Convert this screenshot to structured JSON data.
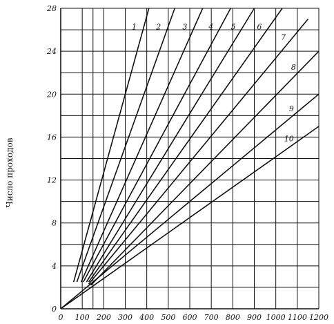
{
  "chart_data": {
    "type": "line",
    "ylabel": "Число проходов",
    "xlabel": "",
    "xlim": [
      0,
      1200
    ],
    "ylim": [
      0,
      28
    ],
    "x_ticks": [
      "0",
      "100",
      "200",
      "300",
      "400",
      "500",
      "600",
      "700",
      "800",
      "900",
      "1000",
      "1100",
      "1200"
    ],
    "y_ticks": [
      "0",
      "4",
      "8",
      "12",
      "16",
      "20",
      "24",
      "28"
    ],
    "x_grid": [
      0,
      100,
      150,
      200,
      300,
      400,
      500,
      600,
      700,
      800,
      900,
      1000,
      1100,
      1200
    ],
    "y_grid": [
      0,
      2,
      4,
      6,
      8,
      10,
      12,
      14,
      16,
      18,
      20,
      22,
      24,
      26,
      28
    ],
    "grid": true,
    "series": [
      {
        "name": "1",
        "x": [
          60,
          410
        ],
        "y": [
          2.5,
          28
        ]
      },
      {
        "name": "2",
        "x": [
          75,
          530
        ],
        "y": [
          2.5,
          28
        ]
      },
      {
        "name": "3",
        "x": [
          95,
          660
        ],
        "y": [
          2.5,
          28
        ]
      },
      {
        "name": "4",
        "x": [
          105,
          790
        ],
        "y": [
          2.5,
          28
        ]
      },
      {
        "name": "5",
        "x": [
          120,
          900
        ],
        "y": [
          2.5,
          28
        ]
      },
      {
        "name": "6",
        "x": [
          130,
          1030
        ],
        "y": [
          2.5,
          28
        ]
      },
      {
        "name": "7",
        "x": [
          130,
          1150
        ],
        "y": [
          2.3,
          27
        ]
      },
      {
        "name": "8",
        "x": [
          140,
          1200
        ],
        "y": [
          2.2,
          24
        ]
      },
      {
        "name": "9",
        "x": [
          0,
          1200
        ],
        "y": [
          0,
          20
        ]
      },
      {
        "name": "10",
        "x": [
          0,
          1200
        ],
        "y": [
          0,
          17
        ]
      }
    ]
  }
}
